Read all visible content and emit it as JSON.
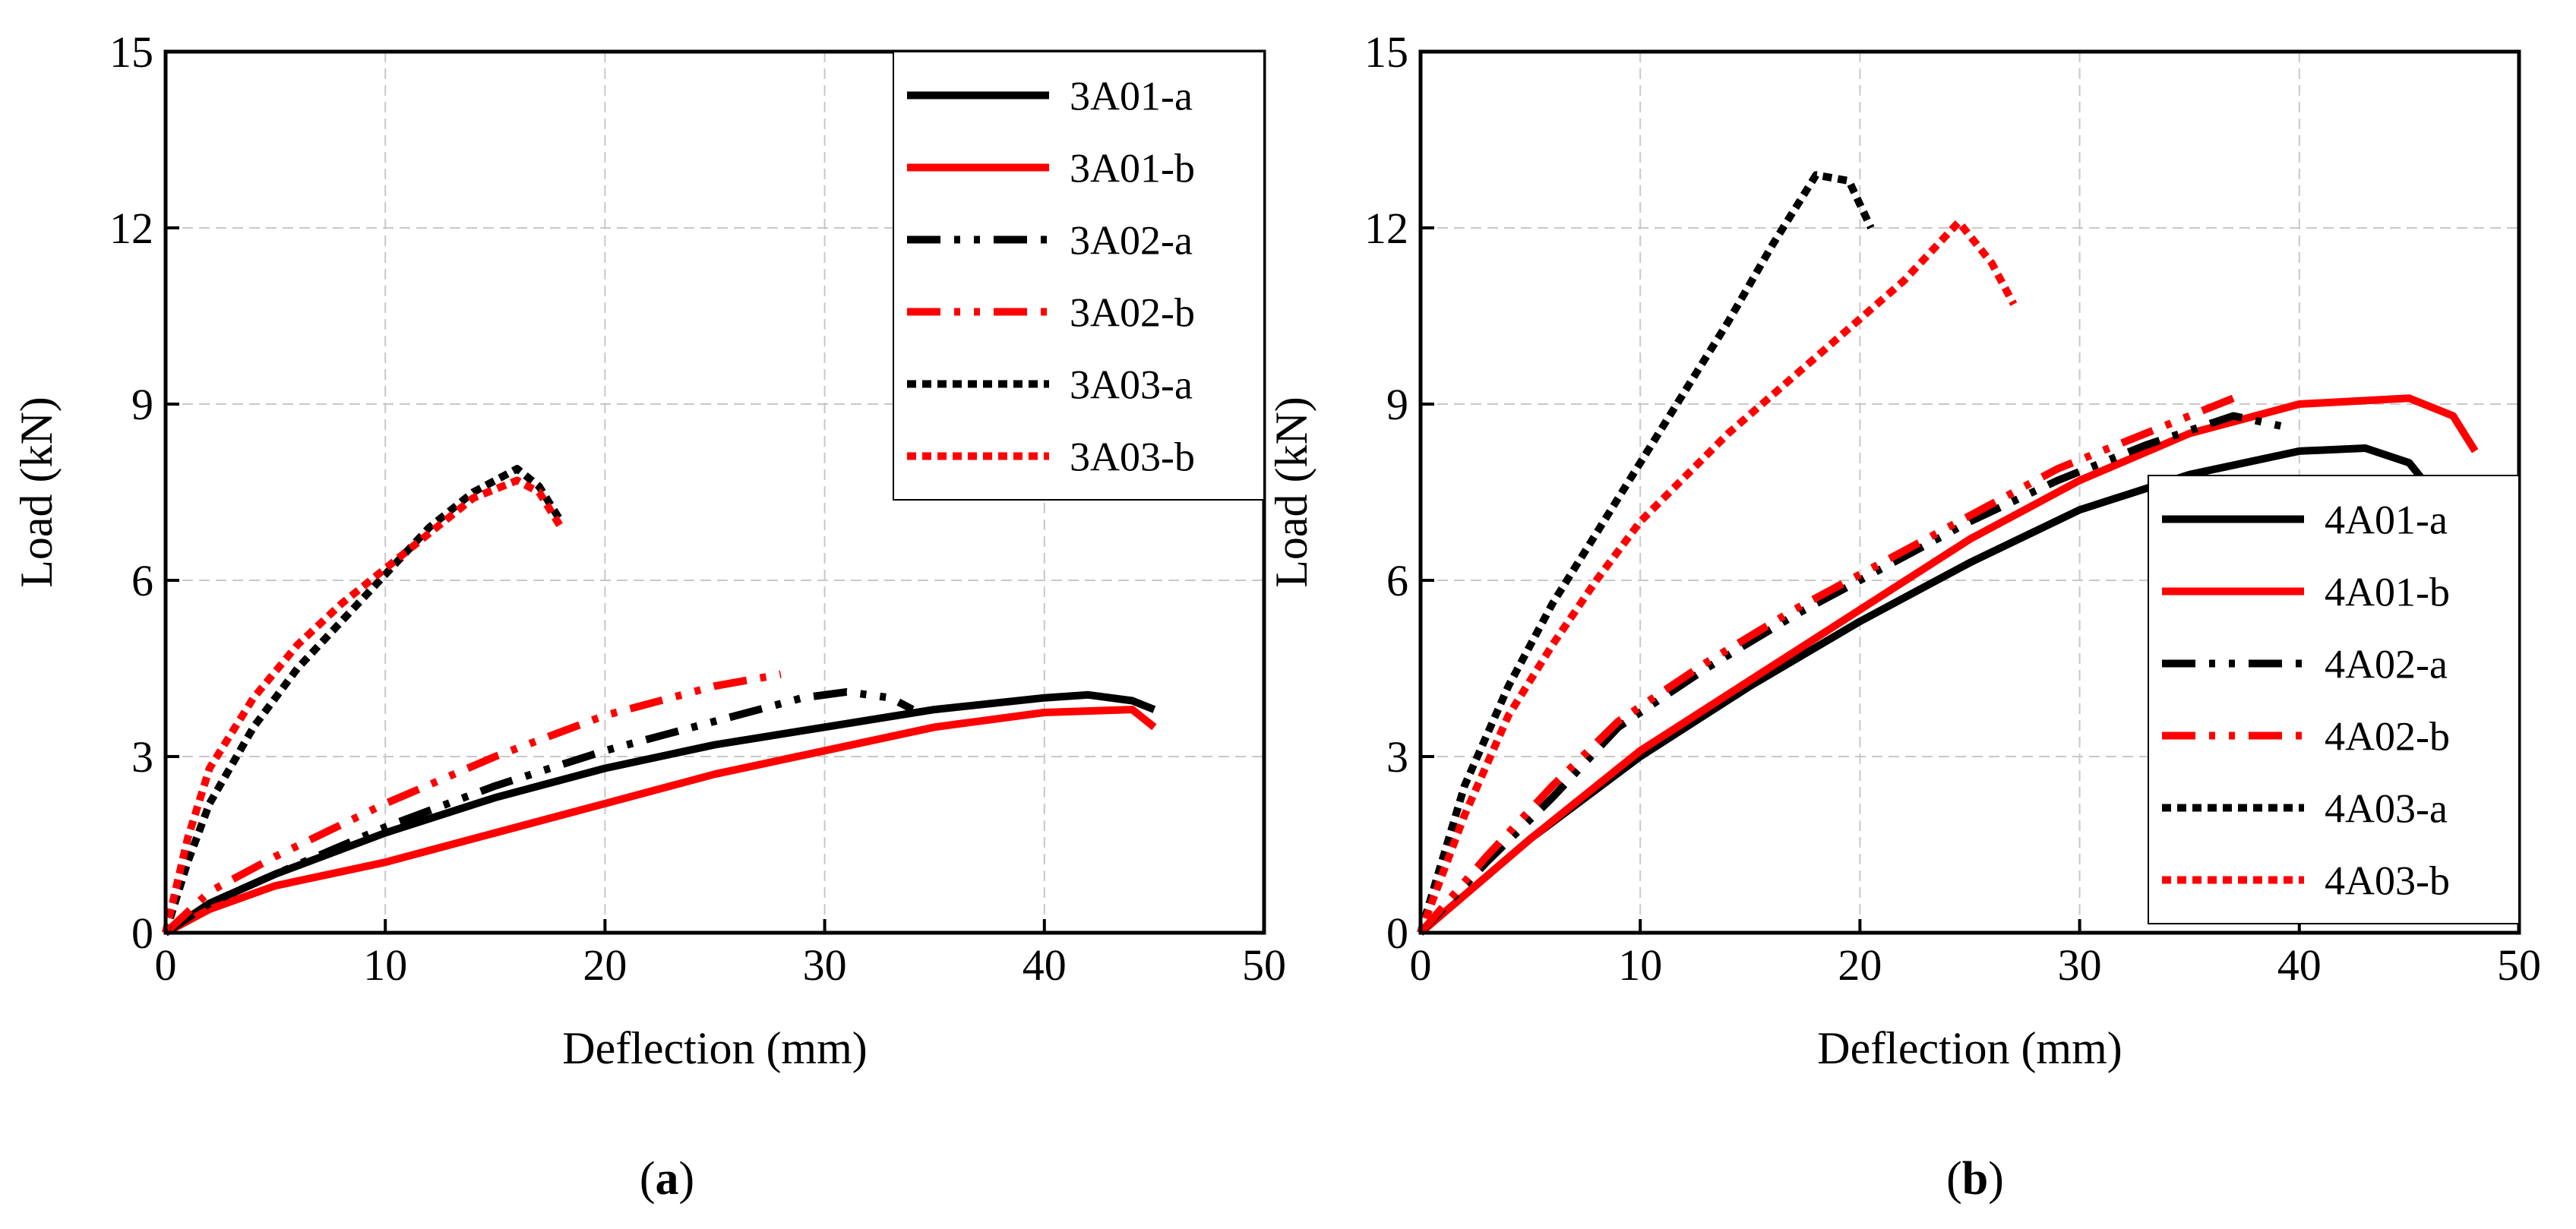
{
  "chart_data": [
    {
      "type": "line",
      "panel_label": "a",
      "xlabel": "Deflection (mm)",
      "ylabel": "Load (kN)",
      "xlim": [
        0,
        50
      ],
      "ylim": [
        0,
        15
      ],
      "xticks": [
        0,
        10,
        20,
        30,
        40,
        50
      ],
      "yticks": [
        0,
        3,
        6,
        9,
        12,
        15
      ],
      "grid": true,
      "legend_position": "top-right",
      "series": [
        {
          "name": "3A01-a",
          "color": "#000000",
          "dash": "solid",
          "x": [
            0,
            2,
            5,
            10,
            15,
            20,
            25,
            30,
            35,
            40,
            42,
            44,
            45
          ],
          "y": [
            0,
            0.5,
            1.0,
            1.7,
            2.3,
            2.8,
            3.2,
            3.5,
            3.8,
            4.0,
            4.05,
            3.95,
            3.8
          ]
        },
        {
          "name": "3A01-b",
          "color": "#ff0000",
          "dash": "solid",
          "x": [
            0,
            2,
            5,
            10,
            15,
            20,
            25,
            30,
            35,
            40,
            44,
            45
          ],
          "y": [
            0,
            0.4,
            0.8,
            1.2,
            1.7,
            2.2,
            2.7,
            3.1,
            3.5,
            3.75,
            3.8,
            3.5
          ]
        },
        {
          "name": "3A02-a",
          "color": "#000000",
          "dash": "dashdotdot",
          "x": [
            0,
            2,
            5,
            10,
            15,
            20,
            25,
            29,
            31,
            33,
            34
          ],
          "y": [
            0,
            0.5,
            1.0,
            1.8,
            2.5,
            3.1,
            3.6,
            4.0,
            4.1,
            4.0,
            3.8
          ]
        },
        {
          "name": "3A02-b",
          "color": "#ff0000",
          "dash": "dashdotdot",
          "x": [
            0,
            2,
            5,
            10,
            15,
            20,
            25,
            28
          ],
          "y": [
            0,
            0.7,
            1.3,
            2.2,
            3.0,
            3.7,
            4.2,
            4.4
          ]
        },
        {
          "name": "3A03-a",
          "color": "#000000",
          "dash": "dot",
          "x": [
            0,
            1,
            2,
            4,
            6,
            8,
            10,
            12,
            14,
            16,
            17,
            18
          ],
          "y": [
            0,
            1.2,
            2.2,
            3.5,
            4.5,
            5.3,
            6.1,
            6.9,
            7.5,
            7.9,
            7.6,
            7.0
          ]
        },
        {
          "name": "3A03-b",
          "color": "#ff0000",
          "dash": "dot",
          "x": [
            0,
            1,
            2,
            4,
            6,
            8,
            10,
            12,
            14,
            16,
            17,
            18
          ],
          "y": [
            0,
            1.6,
            2.8,
            4.0,
            4.9,
            5.6,
            6.2,
            6.8,
            7.4,
            7.7,
            7.5,
            6.9
          ]
        }
      ]
    },
    {
      "type": "line",
      "panel_label": "b",
      "xlabel": "Deflection (mm)",
      "ylabel": "Load (kN)",
      "xlim": [
        0,
        50
      ],
      "ylim": [
        0,
        15
      ],
      "xticks": [
        0,
        10,
        20,
        30,
        40,
        50
      ],
      "yticks": [
        0,
        3,
        6,
        9,
        12,
        15
      ],
      "grid": true,
      "legend_position": "bottom-right",
      "series": [
        {
          "name": "4A01-a",
          "color": "#000000",
          "dash": "solid",
          "x": [
            0,
            5,
            10,
            15,
            20,
            25,
            30,
            35,
            40,
            43,
            45,
            46.5
          ],
          "y": [
            0,
            1.6,
            3.0,
            4.2,
            5.3,
            6.3,
            7.2,
            7.8,
            8.2,
            8.25,
            8.0,
            7.3
          ]
        },
        {
          "name": "4A01-b",
          "color": "#ff0000",
          "dash": "solid",
          "x": [
            0,
            5,
            10,
            15,
            20,
            25,
            30,
            35,
            40,
            45,
            47,
            48
          ],
          "y": [
            0,
            1.6,
            3.1,
            4.3,
            5.5,
            6.7,
            7.7,
            8.5,
            9.0,
            9.1,
            8.8,
            8.2
          ]
        },
        {
          "name": "4A02-a",
          "color": "#000000",
          "dash": "dashdotdot",
          "x": [
            0,
            3,
            6,
            9,
            13,
            17,
            21,
            25,
            29,
            33,
            37,
            39.5
          ],
          "y": [
            0,
            1.2,
            2.3,
            3.5,
            4.5,
            5.4,
            6.2,
            7.0,
            7.7,
            8.3,
            8.8,
            8.6
          ]
        },
        {
          "name": "4A02-b",
          "color": "#ff0000",
          "dash": "dashdotdot",
          "x": [
            0,
            3,
            6,
            9,
            13,
            17,
            21,
            25,
            29,
            33,
            37
          ],
          "y": [
            0,
            1.3,
            2.5,
            3.6,
            4.6,
            5.5,
            6.3,
            7.1,
            7.9,
            8.5,
            9.1
          ]
        },
        {
          "name": "4A03-a",
          "color": "#000000",
          "dash": "dot",
          "x": [
            0,
            2,
            4,
            6,
            8,
            10,
            12,
            14,
            16,
            18,
            19.5,
            20.5
          ],
          "y": [
            0,
            2.5,
            4.2,
            5.6,
            6.8,
            8.0,
            9.2,
            10.4,
            11.7,
            12.9,
            12.8,
            12.0
          ]
        },
        {
          "name": "4A03-b",
          "color": "#ff0000",
          "dash": "dot",
          "x": [
            0,
            2,
            4,
            6,
            8,
            10,
            14,
            18,
            22,
            24.5,
            26,
            27
          ],
          "y": [
            0,
            2.0,
            3.7,
            4.9,
            6.0,
            7.0,
            8.5,
            9.8,
            11.1,
            12.1,
            11.4,
            10.7
          ]
        }
      ]
    }
  ]
}
